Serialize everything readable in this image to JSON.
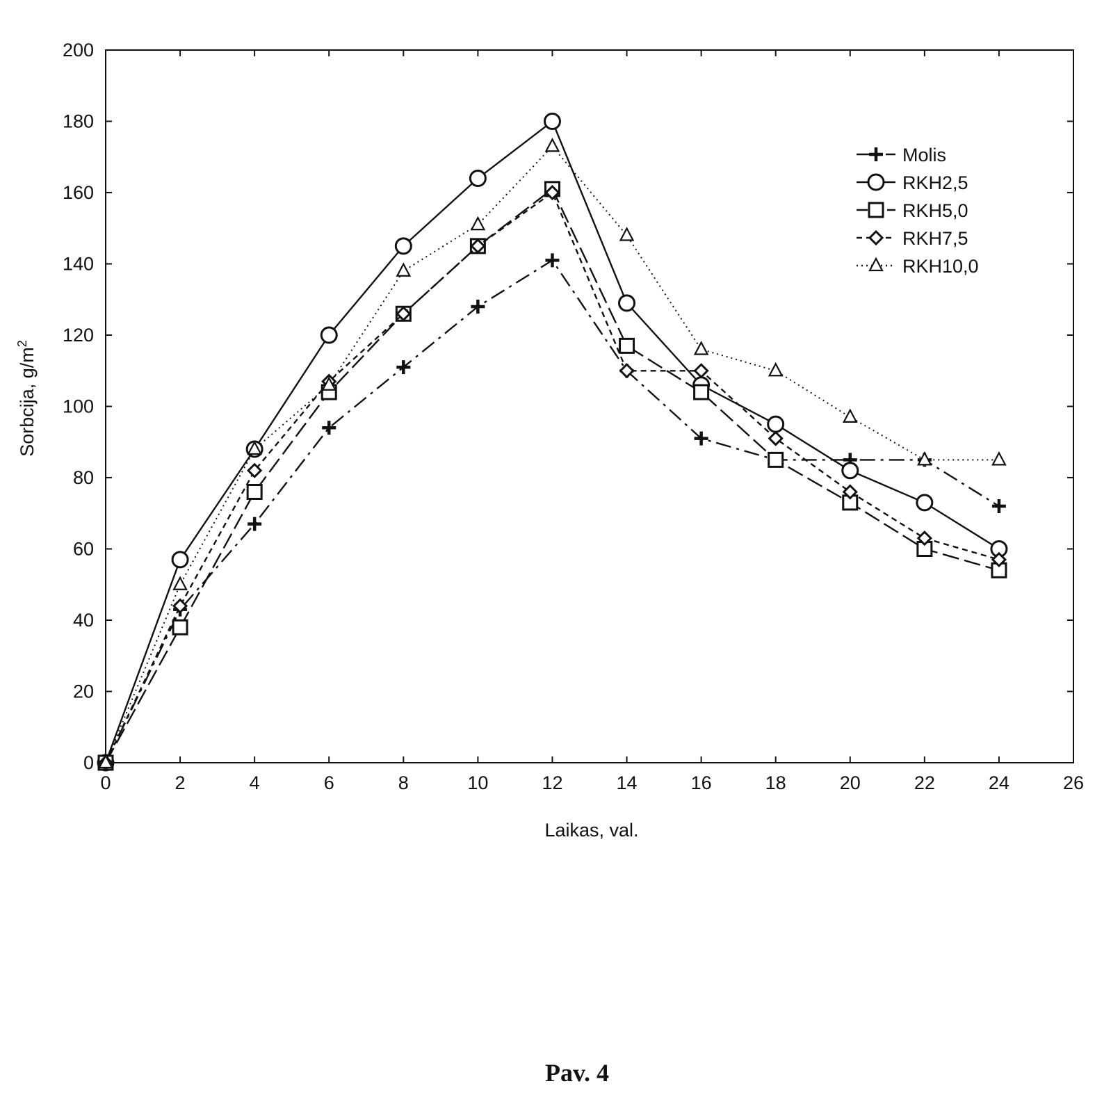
{
  "chart_data": {
    "type": "line",
    "title": "",
    "xlabel": "Laikas, val.",
    "ylabel": "Sorbcija, g/m",
    "ylabel_superscript": "2",
    "xlim": [
      0,
      26
    ],
    "ylim": [
      0,
      200
    ],
    "xticks": [
      0,
      2,
      4,
      6,
      8,
      10,
      12,
      14,
      16,
      18,
      20,
      22,
      24,
      26
    ],
    "yticks": [
      0,
      20,
      40,
      60,
      80,
      100,
      120,
      140,
      160,
      180,
      200
    ],
    "grid": false,
    "legend_position": "top-right",
    "x": [
      0,
      2,
      4,
      6,
      8,
      10,
      12,
      14,
      16,
      18,
      20,
      22,
      24
    ],
    "series": [
      {
        "name": "Molis",
        "marker": "plus",
        "dash": "long-dash-dot",
        "values": [
          0,
          43,
          67,
          94,
          111,
          128,
          141,
          110,
          91,
          85,
          85,
          85,
          72
        ]
      },
      {
        "name": "RKH2,5",
        "marker": "circle",
        "dash": "solid",
        "values": [
          0,
          57,
          88,
          120,
          145,
          164,
          180,
          129,
          106,
          95,
          82,
          73,
          60
        ]
      },
      {
        "name": "RKH5,0",
        "marker": "square",
        "dash": "long-dash",
        "values": [
          0,
          38,
          76,
          104,
          126,
          145,
          161,
          117,
          104,
          85,
          73,
          60,
          54
        ]
      },
      {
        "name": "RKH7,5",
        "marker": "diamond",
        "dash": "short-dash",
        "values": [
          0,
          44,
          82,
          107,
          126,
          145,
          160,
          110,
          110,
          91,
          76,
          63,
          57
        ]
      },
      {
        "name": "RKH10,0",
        "marker": "triangle",
        "dash": "dotted",
        "values": [
          0,
          50,
          88,
          106,
          138,
          151,
          173,
          148,
          116,
          110,
          97,
          85,
          85
        ]
      }
    ]
  },
  "caption": "Pav. 4"
}
